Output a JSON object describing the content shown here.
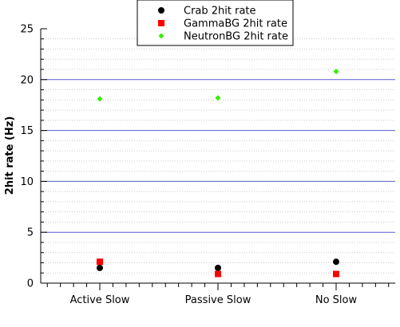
{
  "chart_data": {
    "type": "scatter",
    "title": "",
    "xlabel": "",
    "ylabel": "2hit rate (Hz)",
    "categories": [
      "Active Slow",
      "Passive Slow",
      "No Slow"
    ],
    "ylim": [
      0,
      25
    ],
    "yticks": [
      0,
      5,
      10,
      15,
      20,
      25
    ],
    "grid": {
      "major_y": true,
      "minor_y": true
    },
    "legend_position": "top-center",
    "series": [
      {
        "name": "Crab 2hit rate",
        "marker": "circle",
        "color": "#000000",
        "values": [
          1.5,
          1.5,
          2.1
        ]
      },
      {
        "name": "GammaBG 2hit rate",
        "marker": "square",
        "color": "#ff0000",
        "values": [
          2.1,
          0.9,
          0.9
        ]
      },
      {
        "name": "NeutronBG 2hit rate",
        "marker": "diamond",
        "color": "#33ee00",
        "values": [
          18.1,
          18.2,
          20.8
        ]
      }
    ]
  }
}
